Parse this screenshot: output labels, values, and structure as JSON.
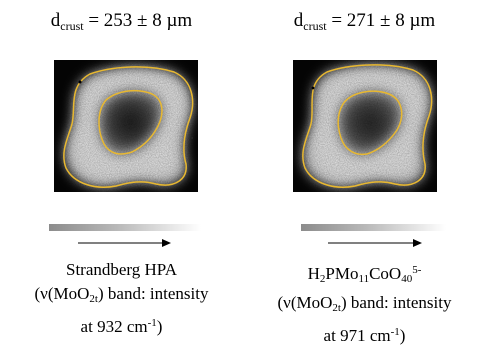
{
  "panels": [
    {
      "thickness": {
        "symbol": "d",
        "symbol_sub": "crust",
        "value": "= 253 ± 8 µm"
      },
      "label": {
        "line1": "Strandberg HPA",
        "line2_open": "(ν(MoO",
        "line2_sub": "2t",
        "line2_close": ") band: intensity",
        "line3_main": "at 932 cm",
        "line3_sup": "-1",
        "line3_end": ")"
      }
    },
    {
      "thickness": {
        "symbol": "d",
        "symbol_sub": "crust",
        "value": "= 271 ± 8 µm"
      },
      "label": {
        "formula_parts": [
          {
            "text": "H",
            "type": "normal"
          },
          {
            "text": "2",
            "type": "sub"
          },
          {
            "text": "PMo",
            "type": "normal"
          },
          {
            "text": "11",
            "type": "sub"
          },
          {
            "text": "CoO",
            "type": "normal"
          },
          {
            "text": "40",
            "type": "sub"
          },
          {
            "text": "5-",
            "type": "sup"
          }
        ],
        "line2_open": "(ν(MoO",
        "line2_sub": "2t",
        "line2_close": ") band: intensity",
        "line3_main": "at 971 cm",
        "line3_sup": "-1",
        "line3_end": ")"
      }
    }
  ],
  "colors": {
    "boundary_outline": "#e8b830",
    "arrow": "#000000"
  }
}
